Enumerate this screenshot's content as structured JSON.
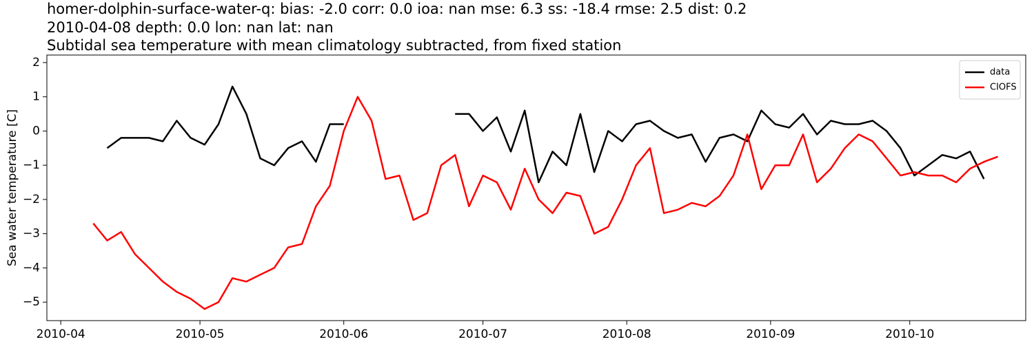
{
  "chart_data": {
    "type": "line",
    "title": "homer-dolphin-surface-water-q: bias: -2.0  corr: 0.0  ioa: nan  mse: 6.3  ss: -18.4  rmse: 2.5  dist: 0.2",
    "subtitle": "2010-04-08 depth: 0.0 lon: nan lat: nan",
    "description": "Subtidal sea temperature with mean climatology subtracted, from fixed station",
    "y_label": "Sea water temperature [C]",
    "x": [
      "2010-04-08",
      "2010-04-11",
      "2010-04-14",
      "2010-04-17",
      "2010-04-20",
      "2010-04-23",
      "2010-04-26",
      "2010-04-29",
      "2010-05-02",
      "2010-05-05",
      "2010-05-08",
      "2010-05-11",
      "2010-05-14",
      "2010-05-17",
      "2010-05-20",
      "2010-05-23",
      "2010-05-26",
      "2010-05-29",
      "2010-06-01",
      "2010-06-04",
      "2010-06-07",
      "2010-06-10",
      "2010-06-13",
      "2010-06-16",
      "2010-06-19",
      "2010-06-22",
      "2010-06-25",
      "2010-06-28",
      "2010-07-01",
      "2010-07-04",
      "2010-07-07",
      "2010-07-10",
      "2010-07-13",
      "2010-07-16",
      "2010-07-19",
      "2010-07-22",
      "2010-07-25",
      "2010-07-28",
      "2010-07-31",
      "2010-08-03",
      "2010-08-06",
      "2010-08-09",
      "2010-08-12",
      "2010-08-15",
      "2010-08-18",
      "2010-08-21",
      "2010-08-24",
      "2010-08-27",
      "2010-08-30",
      "2010-09-02",
      "2010-09-05",
      "2010-09-08",
      "2010-09-11",
      "2010-09-14",
      "2010-09-17",
      "2010-09-20",
      "2010-09-23",
      "2010-09-26",
      "2010-09-29",
      "2010-10-02",
      "2010-10-05",
      "2010-10-08",
      "2010-10-11",
      "2010-10-14",
      "2010-10-17",
      "2010-10-20"
    ],
    "series": [
      {
        "name": "data",
        "color": "#000000",
        "values": [
          null,
          -0.5,
          -0.2,
          -0.2,
          -0.2,
          -0.3,
          0.3,
          -0.2,
          -0.4,
          0.2,
          1.3,
          0.5,
          -0.8,
          -1.0,
          -0.5,
          -0.3,
          -0.9,
          0.2,
          0.2,
          null,
          null,
          null,
          null,
          null,
          null,
          null,
          0.5,
          0.5,
          0.0,
          0.4,
          -0.6,
          0.6,
          -1.5,
          -0.6,
          -1.0,
          0.5,
          -1.2,
          0.0,
          -0.3,
          0.2,
          0.3,
          0.0,
          -0.2,
          -0.1,
          -0.9,
          -0.2,
          -0.1,
          -0.3,
          0.6,
          0.2,
          0.1,
          0.5,
          -0.1,
          0.3,
          0.2,
          0.2,
          0.3,
          0.0,
          -0.5,
          -1.3,
          -1.0,
          -0.7,
          -0.8,
          -0.6,
          -1.4,
          null
        ]
      },
      {
        "name": "CIOFS",
        "color": "#ff0000",
        "values": [
          -2.7,
          -3.2,
          -2.95,
          -3.6,
          -4.0,
          -4.4,
          -4.7,
          -4.9,
          -5.2,
          -5.0,
          -4.3,
          -4.4,
          -4.2,
          -4.0,
          -3.4,
          -3.3,
          -2.2,
          -1.6,
          0.0,
          1.0,
          0.3,
          -1.4,
          -1.3,
          -2.6,
          -2.4,
          -1.0,
          -0.7,
          -2.2,
          -1.3,
          -1.5,
          -2.3,
          -1.1,
          -2.0,
          -2.4,
          -1.8,
          -1.9,
          -3.0,
          -2.8,
          -2.0,
          -1.0,
          -0.5,
          -2.4,
          -2.3,
          -2.1,
          -2.2,
          -1.9,
          -1.3,
          -0.1,
          -1.7,
          -1.0,
          -1.0,
          -0.1,
          -1.5,
          -1.1,
          -0.5,
          -0.1,
          -0.3,
          -0.8,
          -1.3,
          -1.2,
          -1.3,
          -1.3,
          -1.5,
          -1.1,
          -0.9,
          -0.75
        ]
      }
    ],
    "xlim": [
      "2010-03-29",
      "2010-10-26"
    ],
    "xticks": [
      {
        "value": "2010-04-01",
        "label": "2010-04"
      },
      {
        "value": "2010-05-01",
        "label": "2010-05"
      },
      {
        "value": "2010-06-01",
        "label": "2010-06"
      },
      {
        "value": "2010-07-01",
        "label": "2010-07"
      },
      {
        "value": "2010-08-01",
        "label": "2010-08"
      },
      {
        "value": "2010-09-01",
        "label": "2010-09"
      },
      {
        "value": "2010-10-01",
        "label": "2010-10"
      }
    ],
    "ylim": [
      -5.54,
      2.22
    ],
    "yticks": [
      {
        "value": -5,
        "label": "−5"
      },
      {
        "value": -4,
        "label": "−4"
      },
      {
        "value": -3,
        "label": "−3"
      },
      {
        "value": -2,
        "label": "−2"
      },
      {
        "value": -1,
        "label": "−1"
      },
      0,
      1,
      2
    ],
    "grid": false,
    "legend": "upper right"
  }
}
